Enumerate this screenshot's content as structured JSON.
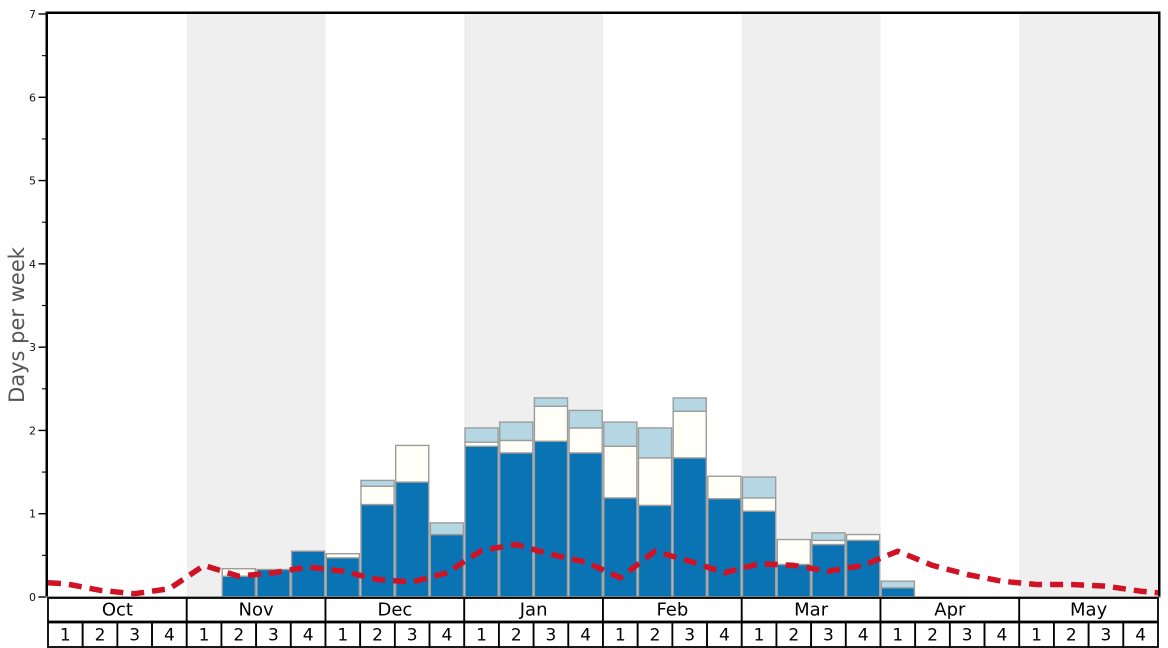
{
  "chart_data": {
    "type": "bar",
    "title": "",
    "ylabel": "Days per week",
    "ylim": [
      0,
      7
    ],
    "y_major_ticks": [
      0,
      1,
      2,
      3,
      4,
      5,
      6,
      7
    ],
    "y_minor_tick_step": 0.5,
    "legend_position": "none",
    "grid": false,
    "months": [
      "Oct",
      "Nov",
      "Dec",
      "Jan",
      "Feb",
      "Mar",
      "Apr",
      "May"
    ],
    "week_labels": [
      "1",
      "2",
      "3",
      "4"
    ],
    "shaded_months": [
      "Nov",
      "Jan",
      "Mar",
      "May"
    ],
    "stack_order": [
      "blue",
      "white",
      "light_blue"
    ],
    "colors": {
      "dark_blue_bar": "#0a73b4",
      "white_bar": "#fffef7",
      "light_blue_bar": "#b5d7e3",
      "bar_border": "#9c9c9c",
      "red_dashed_line": "#d01225",
      "shaded_band": "#efefef",
      "axis_frame": "#000000",
      "baseline": "#808080",
      "y_label_text": "#555555"
    },
    "bars": [
      {
        "month": "Oct",
        "week": 1,
        "blue": 0,
        "white": 0,
        "light_blue": 0
      },
      {
        "month": "Oct",
        "week": 2,
        "blue": 0,
        "white": 0,
        "light_blue": 0
      },
      {
        "month": "Oct",
        "week": 3,
        "blue": 0,
        "white": 0,
        "light_blue": 0
      },
      {
        "month": "Oct",
        "week": 4,
        "blue": 0,
        "white": 0,
        "light_blue": 0
      },
      {
        "month": "Nov",
        "week": 1,
        "blue": 0,
        "white": 0,
        "light_blue": 0
      },
      {
        "month": "Nov",
        "week": 2,
        "blue": 0.25,
        "white": 0.09,
        "light_blue": 0
      },
      {
        "month": "Nov",
        "week": 3,
        "blue": 0.33,
        "white": 0,
        "light_blue": 0
      },
      {
        "month": "Nov",
        "week": 4,
        "blue": 0.55,
        "white": 0,
        "light_blue": 0
      },
      {
        "month": "Dec",
        "week": 1,
        "blue": 0.47,
        "white": 0.05,
        "light_blue": 0
      },
      {
        "month": "Dec",
        "week": 2,
        "blue": 1.11,
        "white": 0.22,
        "light_blue": 0.07
      },
      {
        "month": "Dec",
        "week": 3,
        "blue": 1.38,
        "white": 0.44,
        "light_blue": 0
      },
      {
        "month": "Dec",
        "week": 4,
        "blue": 0.75,
        "white": 0,
        "light_blue": 0.14
      },
      {
        "month": "Jan",
        "week": 1,
        "blue": 1.81,
        "white": 0.05,
        "light_blue": 0.17
      },
      {
        "month": "Jan",
        "week": 2,
        "blue": 1.73,
        "white": 0.15,
        "light_blue": 0.22
      },
      {
        "month": "Jan",
        "week": 3,
        "blue": 1.87,
        "white": 0.42,
        "light_blue": 0.1
      },
      {
        "month": "Jan",
        "week": 4,
        "blue": 1.73,
        "white": 0.3,
        "light_blue": 0.21
      },
      {
        "month": "Feb",
        "week": 1,
        "blue": 1.19,
        "white": 0.62,
        "light_blue": 0.29
      },
      {
        "month": "Feb",
        "week": 2,
        "blue": 1.1,
        "white": 0.57,
        "light_blue": 0.36
      },
      {
        "month": "Feb",
        "week": 3,
        "blue": 1.67,
        "white": 0.56,
        "light_blue": 0.16
      },
      {
        "month": "Feb",
        "week": 4,
        "blue": 1.18,
        "white": 0.27,
        "light_blue": 0
      },
      {
        "month": "Mar",
        "week": 1,
        "blue": 1.03,
        "white": 0.16,
        "light_blue": 0.25
      },
      {
        "month": "Mar",
        "week": 2,
        "blue": 0.39,
        "white": 0.3,
        "light_blue": 0
      },
      {
        "month": "Mar",
        "week": 3,
        "blue": 0.63,
        "white": 0.05,
        "light_blue": 0.09
      },
      {
        "month": "Mar",
        "week": 4,
        "blue": 0.68,
        "white": 0.07,
        "light_blue": 0
      },
      {
        "month": "Apr",
        "week": 1,
        "blue": 0.11,
        "white": 0,
        "light_blue": 0.08
      },
      {
        "month": "Apr",
        "week": 2,
        "blue": 0,
        "white": 0,
        "light_blue": 0
      },
      {
        "month": "Apr",
        "week": 3,
        "blue": 0,
        "white": 0,
        "light_blue": 0
      },
      {
        "month": "Apr",
        "week": 4,
        "blue": 0,
        "white": 0,
        "light_blue": 0
      },
      {
        "month": "May",
        "week": 1,
        "blue": 0,
        "white": 0,
        "light_blue": 0
      },
      {
        "month": "May",
        "week": 2,
        "blue": 0,
        "white": 0,
        "light_blue": 0
      },
      {
        "month": "May",
        "week": 3,
        "blue": 0,
        "white": 0,
        "light_blue": 0
      },
      {
        "month": "May",
        "week": 4,
        "blue": 0,
        "white": 0,
        "light_blue": 0
      }
    ],
    "average_line": {
      "style": "red-dashed",
      "edge_start": 0.17,
      "edge_end": 0.05,
      "values_by_week": [
        0.16,
        0.08,
        0.04,
        0.1,
        0.38,
        0.25,
        0.29,
        0.36,
        0.31,
        0.21,
        0.18,
        0.29,
        0.56,
        0.63,
        0.51,
        0.42,
        0.23,
        0.55,
        0.43,
        0.29,
        0.4,
        0.38,
        0.31,
        0.38,
        0.55,
        0.38,
        0.27,
        0.19,
        0.15,
        0.15,
        0.13,
        0.07
      ]
    }
  }
}
